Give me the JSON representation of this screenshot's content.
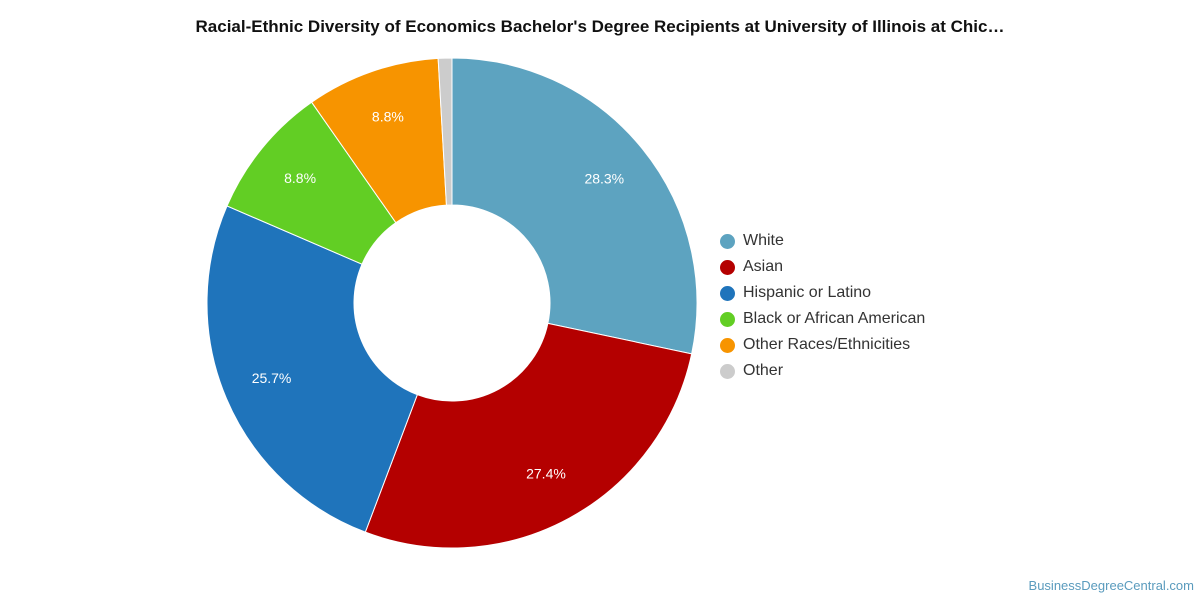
{
  "chart_data": {
    "type": "pie",
    "title": "Racial-Ethnic Diversity of Economics Bachelor's Degree Recipients at University of Illinois at Chic…",
    "legend_position": "right",
    "donut": true,
    "slices": [
      {
        "name": "White",
        "value": 28.3,
        "label": "28.3%",
        "color": "#5da3c0"
      },
      {
        "name": "Asian",
        "value": 27.4,
        "label": "27.4%",
        "color": "#b40000"
      },
      {
        "name": "Hispanic or Latino",
        "value": 25.7,
        "label": "25.7%",
        "color": "#1f74bb"
      },
      {
        "name": "Black or African American",
        "value": 8.8,
        "label": "8.8%",
        "color": "#62ce24"
      },
      {
        "name": "Other Races/Ethnicities",
        "value": 8.8,
        "label": "8.8%",
        "color": "#f79400"
      },
      {
        "name": "Other",
        "value": 0.9,
        "label": "",
        "color": "#cccccc"
      }
    ]
  },
  "source": "BusinessDegreeCentral.com"
}
